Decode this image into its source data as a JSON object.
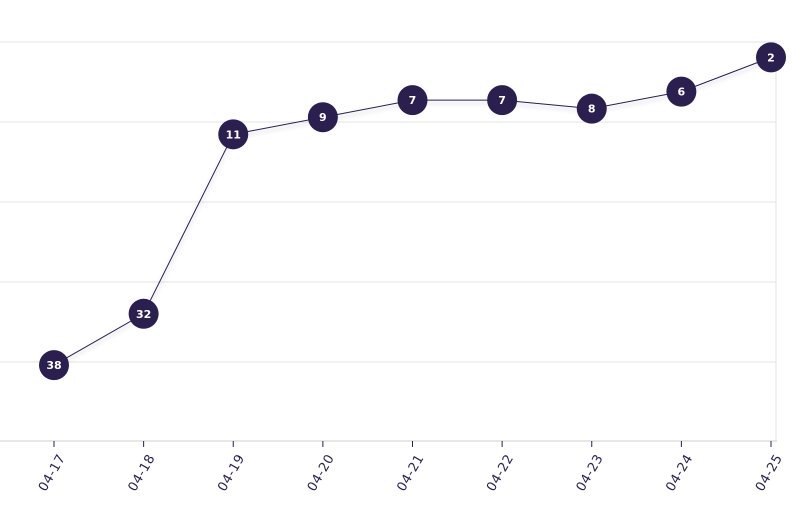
{
  "chart_data": {
    "type": "line",
    "title": "",
    "xlabel": "",
    "ylabel": "",
    "x": [
      "04-17",
      "04-18",
      "04-19",
      "04-20",
      "04-21",
      "04-22",
      "04-23",
      "04-24",
      "04-25"
    ],
    "series": [
      {
        "values": [
          38,
          32,
          11,
          9,
          7,
          7,
          8,
          6,
          2
        ]
      }
    ],
    "y_reversed": true,
    "y_axis_labels_visible": false,
    "gridlines": "horizontal",
    "legend": "none",
    "colors": {
      "marker": "#2b1f4f",
      "line": "#2b1f4f",
      "marker_text": "#ffffff",
      "axis_text": "#2b1f4f",
      "grid": "#e3e3e3",
      "axis": "#cfcfcf"
    }
  }
}
